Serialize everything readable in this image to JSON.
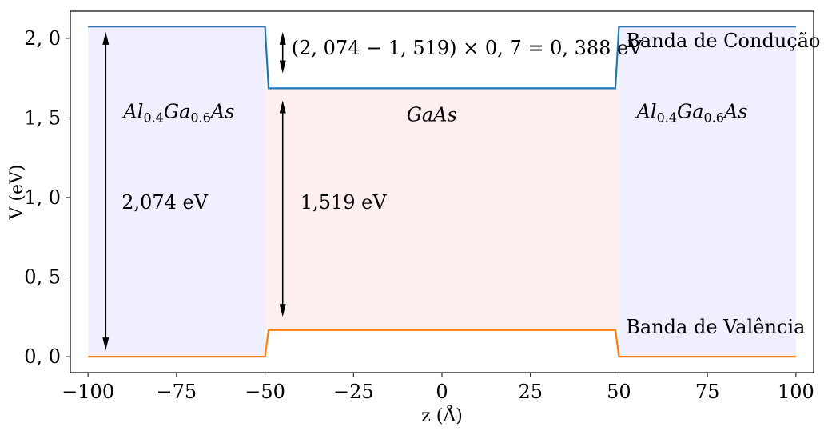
{
  "chart_data": {
    "type": "line",
    "xlabel": "z (Å)",
    "ylabel": "V (eV)",
    "xlim": [
      -105,
      105
    ],
    "ylim": [
      -0.1,
      2.17
    ],
    "grid": false,
    "xticks": [
      -100,
      -75,
      -50,
      -25,
      0,
      25,
      50,
      75,
      100
    ],
    "xtick_labels": [
      "−100",
      "−75",
      "−50",
      "−25",
      "0",
      "25",
      "50",
      "75",
      "100"
    ],
    "yticks": [
      0.0,
      0.5,
      1.0,
      1.5,
      2.0
    ],
    "ytick_labels": [
      "0, 0",
      "0, 5",
      "1, 0",
      "1, 5",
      "2, 0"
    ],
    "series": [
      {
        "name": "Banda de Condução",
        "color": "#1f77b4",
        "x": [
          -100,
          -50,
          -49,
          49,
          50,
          100
        ],
        "y": [
          2.074,
          2.074,
          1.686,
          1.686,
          2.074,
          2.074
        ]
      },
      {
        "name": "Banda de Valência",
        "color": "#ff7f0e",
        "x": [
          -100,
          -50,
          -49,
          49,
          50,
          100
        ],
        "y": [
          0.0,
          0.0,
          0.167,
          0.167,
          0.0,
          0.0
        ]
      }
    ],
    "regions": [
      {
        "x0": -100,
        "x1": -50,
        "y0": 0.0,
        "y1": 2.074,
        "color": "#efefff"
      },
      {
        "x0": -50,
        "x1": 50,
        "y0": 0.167,
        "y1": 1.686,
        "color": "#fdefef"
      },
      {
        "x0": 50,
        "x1": 100,
        "y0": 0.0,
        "y1": 2.074,
        "color": "#efefff"
      }
    ],
    "arrows": [
      {
        "x": -95,
        "y0": 0.04,
        "y1": 2.04
      },
      {
        "x": -45,
        "y0": 0.25,
        "y1": 1.61
      },
      {
        "x": -45,
        "y0": 1.78,
        "y1": 2.04
      }
    ],
    "annotations": [
      {
        "id": "formula",
        "text": "(2, 074 − 1, 519) × 0, 7 = 0, 388 eV",
        "x": -42.5,
        "y": 1.9
      },
      {
        "id": "conduction-label",
        "text": "Banda de Condução",
        "x": 52,
        "y": 1.945
      },
      {
        "id": "valence-label",
        "text": "Banda de Valência",
        "x": 52,
        "y": 0.145
      },
      {
        "id": "algaas-left-label",
        "text": "Al0.4Ga0.6As",
        "x": -90,
        "y": 1.5
      },
      {
        "id": "algaas-right-label",
        "text": "Al0.4Ga0.6As",
        "x": 55,
        "y": 1.5
      },
      {
        "id": "gaas-label",
        "text": "GaAs",
        "x": -10,
        "y": 1.48
      },
      {
        "id": "gap-algaas-label",
        "text": "2,074 eV",
        "x": -90.5,
        "y": 0.93
      },
      {
        "id": "gap-gaas-label",
        "text": "1,519 eV",
        "x": -40,
        "y": 0.93
      }
    ]
  }
}
